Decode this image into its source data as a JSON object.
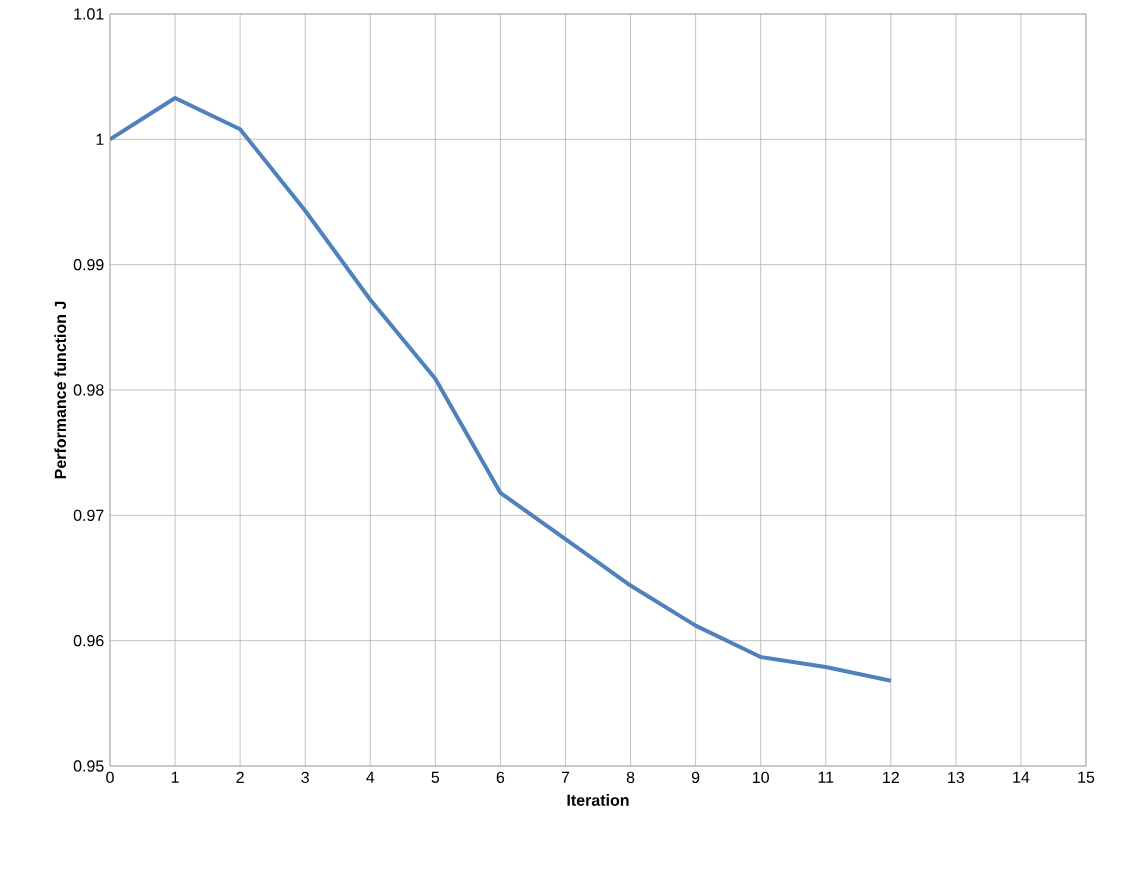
{
  "chart_data": {
    "type": "line",
    "xlabel": "Iteration",
    "ylabel": "Performance function J",
    "x": [
      0,
      1,
      2,
      3,
      4,
      5,
      6,
      7,
      8,
      9,
      10,
      11,
      12
    ],
    "series": [
      {
        "color": "#4f81bd",
        "values": [
          1.0,
          1.0033,
          1.0008,
          0.9943,
          0.9872,
          0.9809,
          0.9718,
          0.9681,
          0.9644,
          0.9612,
          0.9587,
          0.9579,
          0.9568
        ]
      }
    ],
    "xlim": [
      0,
      15
    ],
    "xticks": [
      0,
      1,
      2,
      3,
      4,
      5,
      6,
      7,
      8,
      9,
      10,
      11,
      12,
      13,
      14,
      15
    ],
    "ylim": [
      0.95,
      1.01
    ],
    "yticks": [
      0.95,
      0.96,
      0.97,
      0.98,
      0.99,
      1,
      1.01
    ],
    "grid": true,
    "marker": "none",
    "line_style": "solid"
  }
}
